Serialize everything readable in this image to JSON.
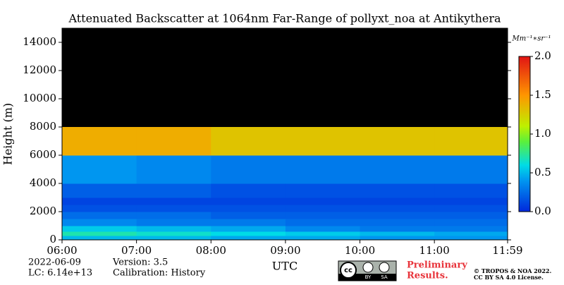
{
  "chart_data": {
    "type": "heatmap",
    "title": "Attenuated Backscatter at 1064nm Far-Range of pollyxt_noa at Antikythera",
    "y_label": "Height (m)",
    "x_label": "UTC",
    "xlim": [
      6,
      11.983
    ],
    "xticks": [
      {
        "value": 6,
        "label": "06:00"
      },
      {
        "value": 7,
        "label": "07:00"
      },
      {
        "value": 8,
        "label": "08:00"
      },
      {
        "value": 9,
        "label": "09:00"
      },
      {
        "value": 10,
        "label": "10:00"
      },
      {
        "value": 11,
        "label": "11:00"
      },
      {
        "value": 11.983,
        "label": "11:59"
      }
    ],
    "ylim": [
      0,
      15000
    ],
    "yticks": [
      0,
      2000,
      4000,
      6000,
      8000,
      10000,
      12000,
      14000
    ],
    "x_bins": [
      6,
      7,
      8,
      9,
      10,
      11,
      11.983
    ],
    "y_bins": [
      0,
      300,
      600,
      1000,
      1500,
      2000,
      2500,
      3000,
      4000,
      6000,
      8000,
      15000
    ],
    "z": [
      [
        0.5,
        0.5,
        0.45,
        0.45,
        0.4,
        0.4
      ],
      [
        0.7,
        0.65,
        0.6,
        0.55,
        0.5,
        0.45
      ],
      [
        0.55,
        0.5,
        0.45,
        0.35,
        0.3,
        0.3
      ],
      [
        0.35,
        0.3,
        0.3,
        0.25,
        0.25,
        0.25
      ],
      [
        0.25,
        0.25,
        0.2,
        0.2,
        0.2,
        0.2
      ],
      [
        0.15,
        0.15,
        0.15,
        0.15,
        0.15,
        0.15
      ],
      [
        0.1,
        0.1,
        0.1,
        0.1,
        0.1,
        0.1
      ],
      [
        0.2,
        0.2,
        0.15,
        0.15,
        0.15,
        0.15
      ],
      [
        0.4,
        0.35,
        0.3,
        0.3,
        0.3,
        0.3
      ],
      [
        1.4,
        1.4,
        1.3,
        1.3,
        1.3,
        1.3
      ],
      [
        null,
        null,
        null,
        null,
        null,
        null
      ]
    ],
    "background": "#000000",
    "colorbar": {
      "label": "Mm⁻¹∗sr⁻¹",
      "clim": [
        0,
        2
      ],
      "ticks": [
        {
          "value": 0,
          "label": "0.0"
        },
        {
          "value": 0.5,
          "label": "0.5"
        },
        {
          "value": 1,
          "label": "1.0"
        },
        {
          "value": 1.5,
          "label": "1.5"
        },
        {
          "value": 2,
          "label": "2.0"
        }
      ]
    },
    "footer": {
      "date": "2022-06-09",
      "lc": "LC: 6.14e+13",
      "version": "Version: 3.5",
      "calibration": "Calibration: History",
      "preliminary": [
        "Preliminary",
        "Results."
      ],
      "copyright": [
        "© TROPOS & NOA 2022.",
        "CC BY SA 4.0 License."
      ],
      "badge": [
        "cc",
        "BY",
        "SA"
      ]
    }
  }
}
